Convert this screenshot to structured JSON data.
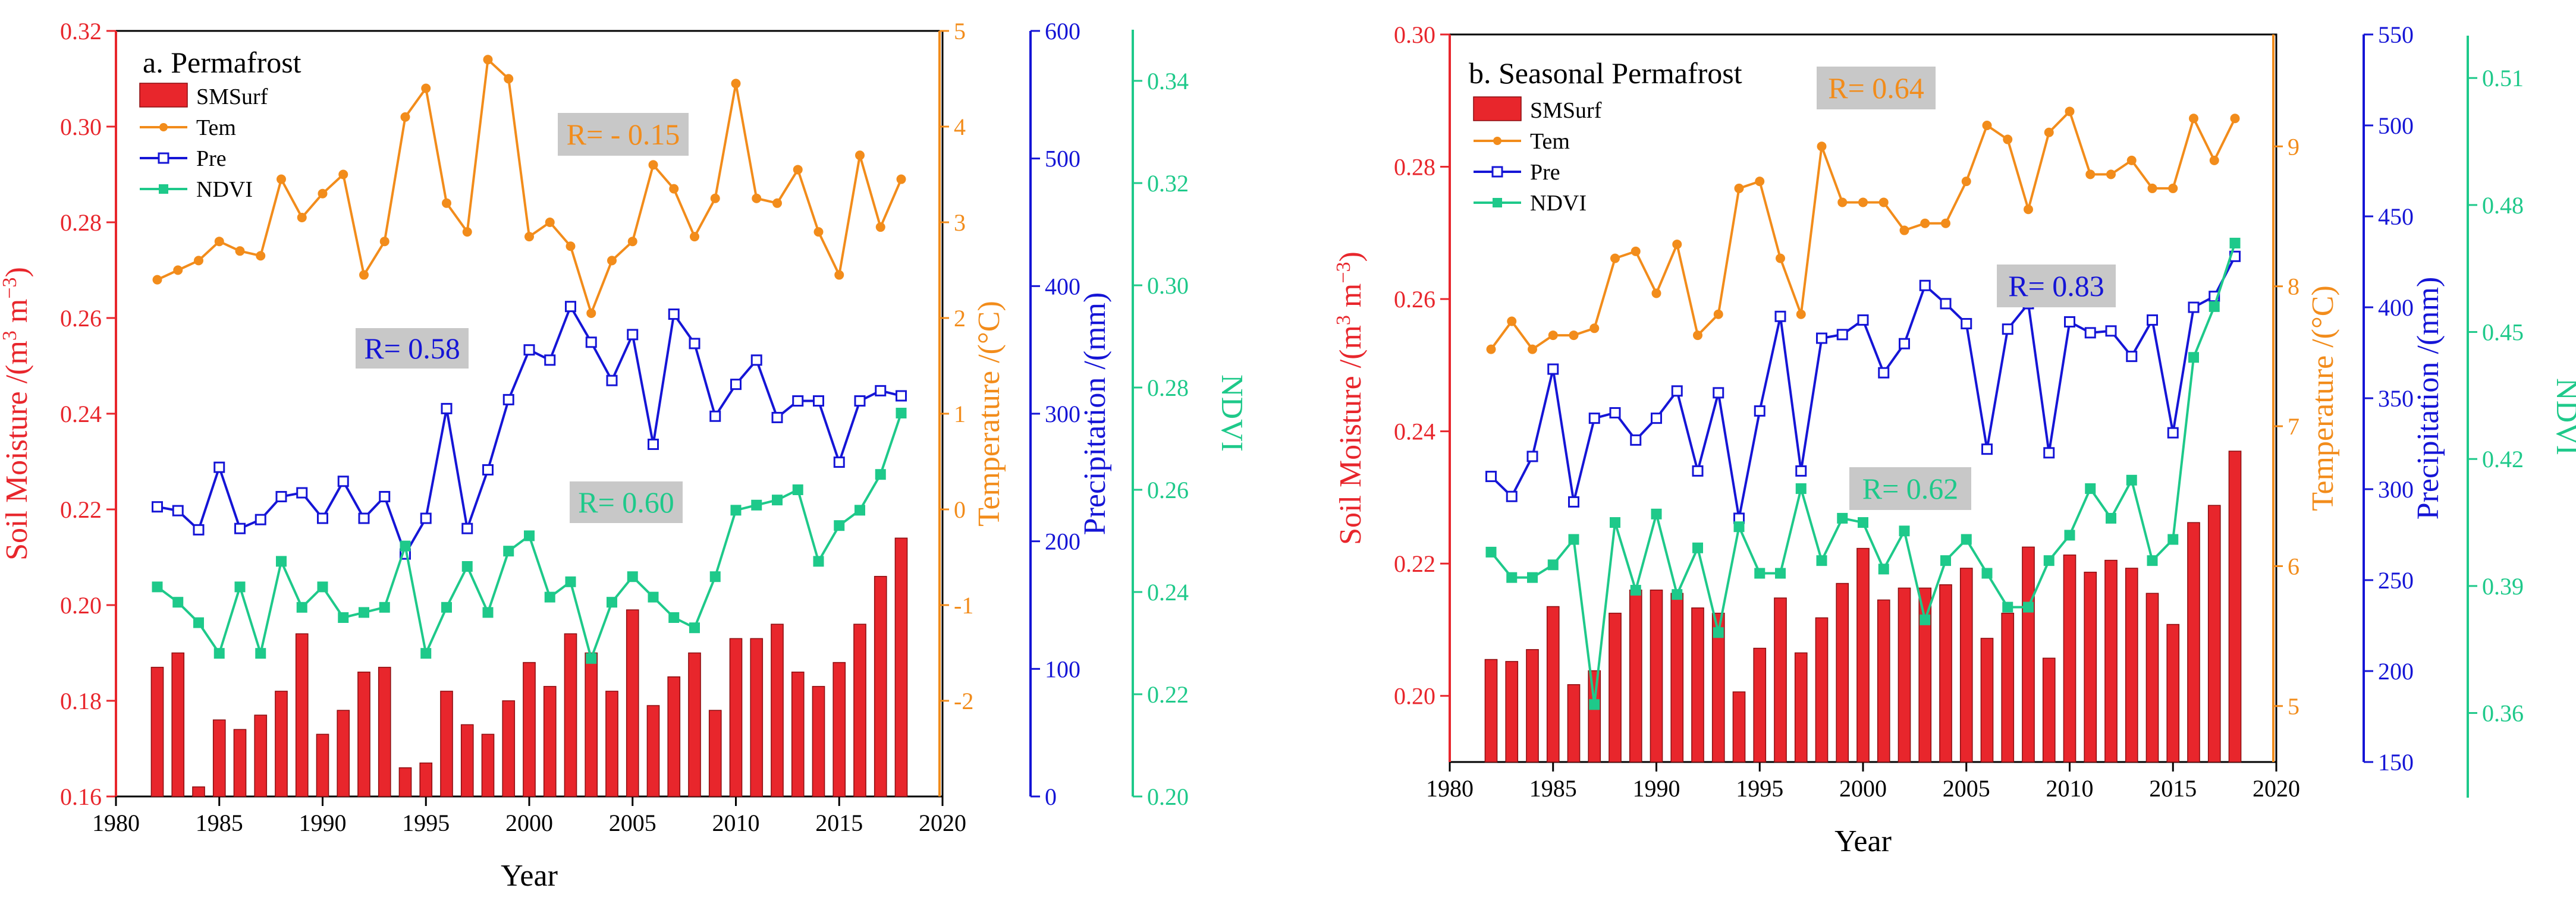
{
  "chart_data": [
    {
      "type": "bar",
      "title": "a. Permafrost",
      "xlabel": "Year",
      "xlim": [
        1980,
        2020
      ],
      "xticks": [
        1980,
        1985,
        1990,
        1995,
        2000,
        2005,
        2010,
        2015,
        2020
      ],
      "x": [
        1982,
        1983,
        1984,
        1985,
        1986,
        1987,
        1988,
        1989,
        1990,
        1991,
        1992,
        1993,
        1994,
        1995,
        1996,
        1997,
        1998,
        1999,
        2000,
        2001,
        2002,
        2003,
        2004,
        2005,
        2006,
        2007,
        2008,
        2009,
        2010,
        2011,
        2012,
        2013,
        2014,
        2015,
        2016,
        2017,
        2018
      ],
      "axes": {
        "sm": {
          "label_main": "Soil Moisture /(m",
          "label_mid": " m",
          "label_end": ")",
          "sup1": "3",
          "sup2": "−3",
          "ylim": [
            0.16,
            0.32
          ],
          "ticks": [
            "0.16",
            "0.18",
            "0.20",
            "0.22",
            "0.24",
            "0.26",
            "0.28",
            "0.30",
            "0.32"
          ],
          "color": "#e8262c"
        },
        "tem": {
          "label": "Temperature /(°C)",
          "ylim": [
            -3,
            5
          ],
          "ticks": [
            "-2",
            "-1",
            "0",
            "1",
            "2",
            "3",
            "4",
            "5"
          ],
          "color": "#f28c1b"
        },
        "pre": {
          "label": "Precipitation /(mm)",
          "ylim": [
            0,
            600
          ],
          "ticks": [
            "0",
            "100",
            "200",
            "300",
            "400",
            "500",
            "600"
          ],
          "color": "#1515d6"
        },
        "ndvi": {
          "label": "NDVI",
          "ylim": [
            0.2,
            0.35
          ],
          "ticks": [
            "0.20",
            "0.22",
            "0.24",
            "0.26",
            "0.28",
            "0.30",
            "0.32",
            "0.34"
          ],
          "color": "#1ec98a"
        }
      },
      "series": [
        {
          "name": "SMSurf",
          "kind": "bar",
          "axis": "sm",
          "values": [
            0.187,
            0.19,
            0.162,
            0.176,
            0.174,
            0.177,
            0.182,
            0.194,
            0.173,
            0.178,
            0.186,
            0.187,
            0.166,
            0.167,
            0.182,
            0.175,
            0.173,
            0.18,
            0.188,
            0.183,
            0.194,
            0.19,
            0.182,
            0.199,
            0.179,
            0.185,
            0.19,
            0.178,
            0.193,
            0.193,
            0.196,
            0.186,
            0.183,
            0.188,
            0.196,
            0.206,
            0.214
          ]
        },
        {
          "name": "Tem",
          "kind": "line",
          "axis": "tem",
          "marker": "circle",
          "values": [
            2.4,
            2.5,
            2.6,
            2.8,
            2.7,
            2.65,
            3.45,
            3.05,
            3.3,
            3.5,
            2.45,
            2.8,
            4.1,
            4.4,
            3.2,
            2.9,
            4.7,
            4.5,
            2.85,
            3.0,
            2.75,
            2.05,
            2.6,
            2.8,
            3.6,
            3.35,
            2.85,
            3.25,
            4.45,
            3.25,
            3.2,
            3.55,
            2.9,
            2.45,
            3.7,
            2.95,
            3.45
          ]
        },
        {
          "name": "Pre",
          "kind": "line",
          "axis": "pre",
          "marker": "square",
          "values": [
            227,
            224,
            209,
            258,
            210,
            217,
            235,
            238,
            218,
            247,
            218,
            235,
            190,
            218,
            304,
            210,
            256,
            311,
            350,
            342,
            384,
            356,
            326,
            362,
            276,
            378,
            355,
            298,
            323,
            342,
            297,
            310,
            310,
            262,
            310,
            318,
            314
          ]
        },
        {
          "name": "NDVI",
          "kind": "line",
          "axis": "ndvi",
          "marker": "square",
          "values": [
            0.241,
            0.238,
            0.234,
            0.228,
            0.241,
            0.228,
            0.246,
            0.237,
            0.241,
            0.235,
            0.236,
            0.237,
            0.249,
            0.228,
            0.237,
            0.245,
            0.236,
            0.248,
            0.251,
            0.239,
            0.242,
            0.227,
            0.238,
            0.243,
            0.239,
            0.235,
            0.233,
            0.243,
            0.256,
            0.257,
            0.258,
            0.26,
            0.246,
            0.253,
            0.256,
            0.263,
            0.275
          ]
        }
      ],
      "legend": [
        "SMSurf",
        "Tem",
        "Pre",
        "NDVI"
      ],
      "annotations": [
        {
          "text": "R= - 0.15",
          "color": "#f28c1b"
        },
        {
          "text": "R= 0.58",
          "color": "#1515d6"
        },
        {
          "text": "R= 0.60",
          "color": "#1ec98a"
        }
      ]
    },
    {
      "type": "bar",
      "title": "b. Seasonal Permafrost",
      "xlabel": "Year",
      "xlim": [
        1980,
        2020
      ],
      "xticks": [
        1980,
        1985,
        1990,
        1995,
        2000,
        2005,
        2010,
        2015,
        2020
      ],
      "x": [
        1982,
        1983,
        1984,
        1985,
        1986,
        1987,
        1988,
        1989,
        1990,
        1991,
        1992,
        1993,
        1994,
        1995,
        1996,
        1997,
        1998,
        1999,
        2000,
        2001,
        2002,
        2003,
        2004,
        2005,
        2006,
        2007,
        2008,
        2009,
        2010,
        2011,
        2012,
        2013,
        2014,
        2015,
        2016,
        2017,
        2018
      ],
      "axes": {
        "sm": {
          "label_main": "Soil Moisture /(m",
          "label_mid": " m",
          "label_end": ")",
          "sup1": "3",
          "sup2": "−3",
          "ylim": [
            0.19,
            0.3
          ],
          "ticks": [
            "0.20",
            "0.22",
            "0.24",
            "0.26",
            "0.28",
            "0.30"
          ],
          "color": "#e8262c"
        },
        "tem": {
          "label": "Temperature /(°C)",
          "ylim": [
            4.6,
            9.8
          ],
          "ticks": [
            "5",
            "6",
            "7",
            "8",
            "9"
          ],
          "color": "#f28c1b"
        },
        "pre": {
          "label": "Precipitation /(mm)",
          "ylim": [
            150,
            550
          ],
          "ticks": [
            "150",
            "200",
            "250",
            "300",
            "350",
            "400",
            "450",
            "500",
            "550"
          ],
          "color": "#1515d6"
        },
        "ndvi": {
          "label": "NDVI",
          "ylim": [
            0.34,
            0.52
          ],
          "ticks": [
            "0.36",
            "0.39",
            "0.42",
            "0.45",
            "0.48",
            "0.51"
          ],
          "color": "#1ec98a"
        }
      },
      "series": [
        {
          "name": "SMSurf",
          "kind": "bar",
          "axis": "sm",
          "values": [
            0.2055,
            0.2052,
            0.207,
            0.2135,
            0.2017,
            0.2038,
            0.2125,
            0.216,
            0.216,
            0.2155,
            0.2133,
            0.2125,
            0.2006,
            0.2072,
            0.2148,
            0.2065,
            0.2118,
            0.217,
            0.2223,
            0.2145,
            0.2163,
            0.2163,
            0.2168,
            0.2193,
            0.2087,
            0.2125,
            0.2225,
            0.2057,
            0.2213,
            0.2187,
            0.2205,
            0.2193,
            0.2155,
            0.2108,
            0.2262,
            0.2288,
            0.237
          ]
        },
        {
          "name": "Tem",
          "kind": "line",
          "axis": "tem",
          "marker": "circle",
          "values": [
            7.55,
            7.75,
            7.55,
            7.65,
            7.65,
            7.7,
            8.2,
            8.25,
            7.95,
            8.3,
            7.65,
            7.8,
            8.7,
            8.75,
            8.2,
            7.8,
            9.0,
            8.6,
            8.6,
            8.6,
            8.4,
            8.45,
            8.45,
            8.75,
            9.15,
            9.05,
            8.55,
            9.1,
            9.25,
            8.8,
            8.8,
            8.9,
            8.7,
            8.7,
            9.2,
            8.9,
            9.2
          ]
        },
        {
          "name": "Pre",
          "kind": "line",
          "axis": "pre",
          "marker": "square",
          "values": [
            307,
            296,
            318,
            366,
            293,
            339,
            342,
            327,
            339,
            354,
            310,
            353,
            284,
            343,
            395,
            310,
            383,
            385,
            393,
            364,
            380,
            412,
            402,
            391,
            322,
            388,
            402,
            320,
            392,
            386,
            387,
            373,
            393,
            331,
            400,
            406,
            428
          ]
        },
        {
          "name": "NDVI",
          "kind": "line",
          "axis": "ndvi",
          "marker": "square",
          "values": [
            0.398,
            0.392,
            0.392,
            0.395,
            0.401,
            0.362,
            0.405,
            0.389,
            0.407,
            0.388,
            0.399,
            0.379,
            0.404,
            0.393,
            0.393,
            0.413,
            0.396,
            0.406,
            0.405,
            0.394,
            0.403,
            0.382,
            0.396,
            0.401,
            0.393,
            0.385,
            0.385,
            0.396,
            0.402,
            0.413,
            0.406,
            0.415,
            0.396,
            0.401,
            0.444,
            0.456,
            0.471
          ]
        }
      ],
      "legend": [
        "SMSurf",
        "Tem",
        "Pre",
        "NDVI"
      ],
      "annotations": [
        {
          "text": "R= 0.64",
          "color": "#f28c1b"
        },
        {
          "text": "R= 0.83",
          "color": "#1515d6"
        },
        {
          "text": "R= 0.62",
          "color": "#1ec98a"
        }
      ]
    }
  ]
}
